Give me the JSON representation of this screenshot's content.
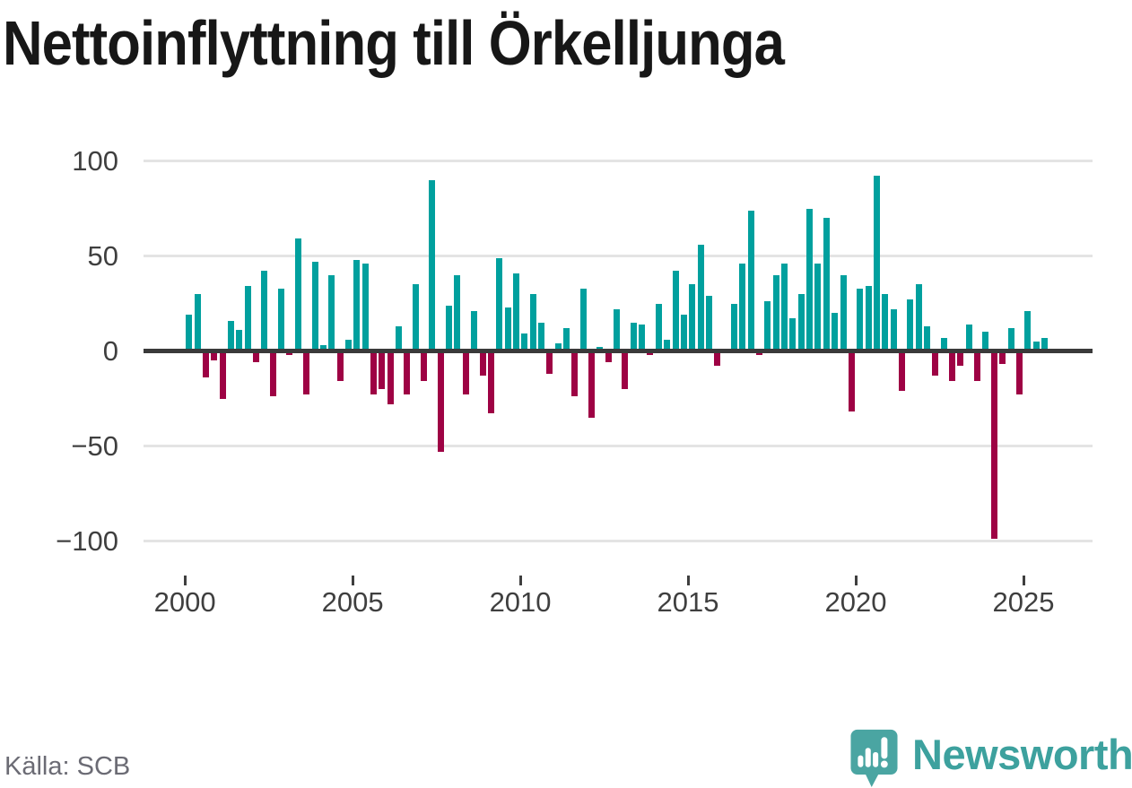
{
  "title": "Nettoinflyttning till Örkelljunga",
  "source_label": "Källa: SCB",
  "brand": {
    "name": "Newsworthy"
  },
  "colors": {
    "positive": "#00a09e",
    "negative": "#9e0244",
    "axis_line": "#3a3a3a",
    "gridline": "#e4e4e4",
    "tick_label": "#3f3f3f",
    "title_text": "#171717",
    "source_text": "#6b6b74",
    "brand_teal": "#45a3a0"
  },
  "chart_data": {
    "type": "bar",
    "title": "Nettoinflyttning till Örkelljunga",
    "xlabel": "",
    "ylabel": "",
    "period": "quarterly",
    "grid": "horizontal",
    "ylim": [
      -110,
      108
    ],
    "yticks": [
      100,
      50,
      0,
      -50,
      -100
    ],
    "ytick_labels": [
      "100",
      "50",
      "0",
      "−50",
      "−100"
    ],
    "xticks": [
      2000,
      2005,
      2010,
      2015,
      2020,
      2025
    ],
    "xtick_labels": [
      "2000",
      "2005",
      "2010",
      "2015",
      "2020",
      "2025"
    ],
    "categories": [
      "2000-Q1",
      "2000-Q2",
      "2000-Q3",
      "2000-Q4",
      "2001-Q1",
      "2001-Q2",
      "2001-Q3",
      "2001-Q4",
      "2002-Q1",
      "2002-Q2",
      "2002-Q3",
      "2002-Q4",
      "2003-Q1",
      "2003-Q2",
      "2003-Q3",
      "2003-Q4",
      "2004-Q1",
      "2004-Q2",
      "2004-Q3",
      "2004-Q4",
      "2005-Q1",
      "2005-Q2",
      "2005-Q3",
      "2005-Q4",
      "2006-Q1",
      "2006-Q2",
      "2006-Q3",
      "2006-Q4",
      "2007-Q1",
      "2007-Q2",
      "2007-Q3",
      "2007-Q4",
      "2008-Q1",
      "2008-Q2",
      "2008-Q3",
      "2008-Q4",
      "2009-Q1",
      "2009-Q2",
      "2009-Q3",
      "2009-Q4",
      "2010-Q1",
      "2010-Q2",
      "2010-Q3",
      "2010-Q4",
      "2011-Q1",
      "2011-Q2",
      "2011-Q3",
      "2011-Q4",
      "2012-Q1",
      "2012-Q2",
      "2012-Q3",
      "2012-Q4",
      "2013-Q1",
      "2013-Q2",
      "2013-Q3",
      "2013-Q4",
      "2014-Q1",
      "2014-Q2",
      "2014-Q3",
      "2014-Q4",
      "2015-Q1",
      "2015-Q2",
      "2015-Q3",
      "2015-Q4",
      "2016-Q1",
      "2016-Q2",
      "2016-Q3",
      "2016-Q4",
      "2017-Q1",
      "2017-Q2",
      "2017-Q3",
      "2017-Q4",
      "2018-Q1",
      "2018-Q2",
      "2018-Q3",
      "2018-Q4",
      "2019-Q1",
      "2019-Q2",
      "2019-Q3",
      "2019-Q4",
      "2020-Q1",
      "2020-Q2",
      "2020-Q3",
      "2020-Q4",
      "2021-Q1",
      "2021-Q2",
      "2021-Q3",
      "2021-Q4",
      "2022-Q1",
      "2022-Q2",
      "2022-Q3",
      "2022-Q4",
      "2023-Q1",
      "2023-Q2",
      "2023-Q3",
      "2023-Q4",
      "2024-Q1",
      "2024-Q2",
      "2024-Q3",
      "2024-Q4",
      "2025-Q1",
      "2025-Q2",
      "2025-Q3"
    ],
    "values": [
      19,
      30,
      -14,
      -5,
      -25,
      16,
      11,
      34,
      -6,
      42,
      -24,
      33,
      -2,
      59,
      -23,
      47,
      3,
      40,
      -16,
      6,
      48,
      46,
      -23,
      -20,
      -28,
      13,
      -23,
      35,
      -16,
      90,
      -53,
      24,
      40,
      -23,
      21,
      -13,
      -33,
      49,
      23,
      41,
      9,
      30,
      15,
      -12,
      4,
      12,
      -24,
      33,
      -35,
      2,
      -6,
      22,
      -20,
      15,
      14,
      -2,
      25,
      6,
      42,
      19,
      35,
      56,
      29,
      -8,
      0,
      25,
      46,
      74,
      -2,
      26,
      40,
      46,
      17,
      30,
      75,
      46,
      70,
      20,
      40,
      -32,
      33,
      34,
      92,
      30,
      22,
      -21,
      27,
      35,
      13,
      -13,
      7,
      -16,
      -8,
      14,
      -16,
      10,
      -99,
      -7,
      12,
      -23,
      21,
      5,
      7
    ]
  }
}
